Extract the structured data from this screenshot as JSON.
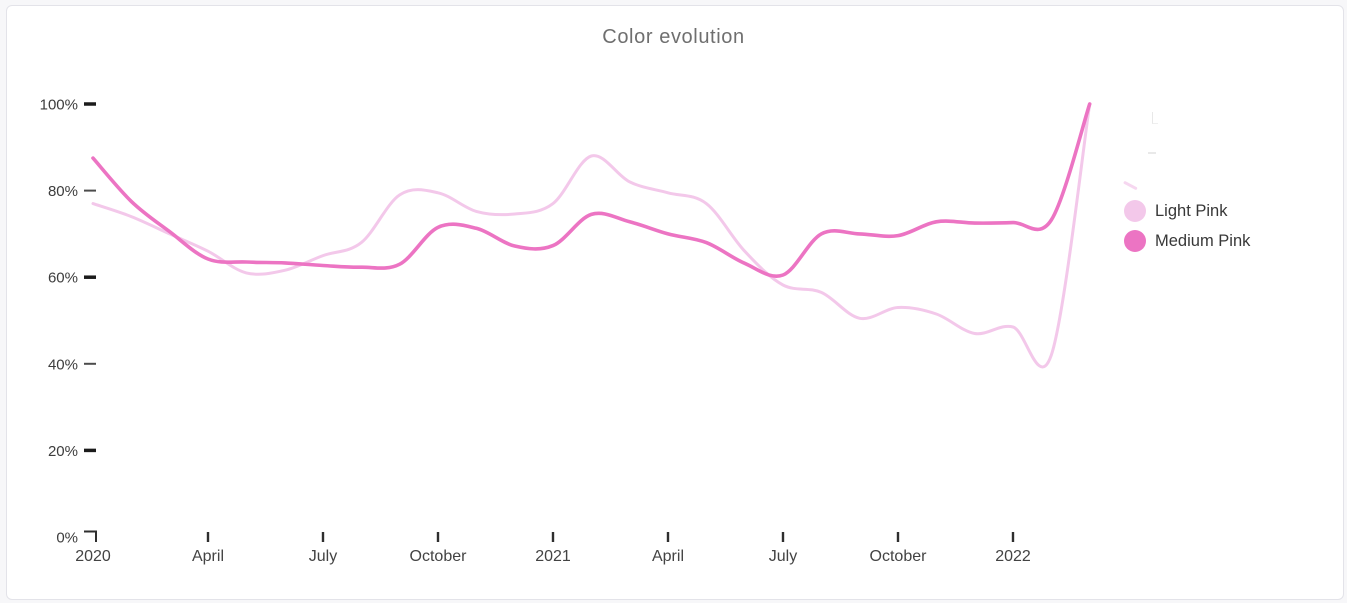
{
  "chart_data": {
    "type": "line",
    "title": "Color evolution",
    "grid": false,
    "legend_position": "right",
    "x_axis": {
      "tick_labels": [
        "2020",
        "April",
        "July",
        "October",
        "2021",
        "April",
        "July",
        "October",
        "2022"
      ],
      "tick_month_indices": [
        0,
        3,
        6,
        9,
        12,
        15,
        18,
        21,
        24
      ]
    },
    "y_axis": {
      "tick_labels": [
        "0%",
        "20%",
        "40%",
        "60%",
        "80%",
        "100%"
      ],
      "tick_values": [
        0,
        20,
        40,
        60,
        80,
        100
      ],
      "range": [
        0,
        100
      ],
      "unit": "%"
    },
    "x": [
      "2020-01",
      "2020-02",
      "2020-03",
      "2020-04",
      "2020-05",
      "2020-06",
      "2020-07",
      "2020-08",
      "2020-09",
      "2020-10",
      "2020-11",
      "2020-12",
      "2021-01",
      "2021-02",
      "2021-03",
      "2021-04",
      "2021-05",
      "2021-06",
      "2021-07",
      "2021-08",
      "2021-09",
      "2021-10",
      "2021-11",
      "2021-12",
      "2022-01",
      "2022-02",
      "2022-03"
    ],
    "series": [
      {
        "name": "Light Pink",
        "color": "#f3c8ea",
        "values": [
          77,
          74,
          70,
          66,
          61,
          61.6,
          65,
          68,
          79,
          79.5,
          75.2,
          74.6,
          77,
          88,
          82,
          79.5,
          77,
          66,
          58.2,
          56.5,
          50.5,
          53,
          51.5,
          47,
          48.5,
          42,
          100
        ]
      },
      {
        "name": "Medium Pink",
        "color": "#ec74c3",
        "values": [
          87.5,
          77.5,
          70.5,
          64.2,
          63.5,
          63.3,
          62.7,
          62.3,
          63,
          71.5,
          71.3,
          67.2,
          67.3,
          74.5,
          72.8,
          70,
          68,
          63.2,
          60.5,
          70,
          70,
          69.6,
          72.8,
          72.5,
          72.6,
          73.2,
          100
        ]
      }
    ]
  }
}
